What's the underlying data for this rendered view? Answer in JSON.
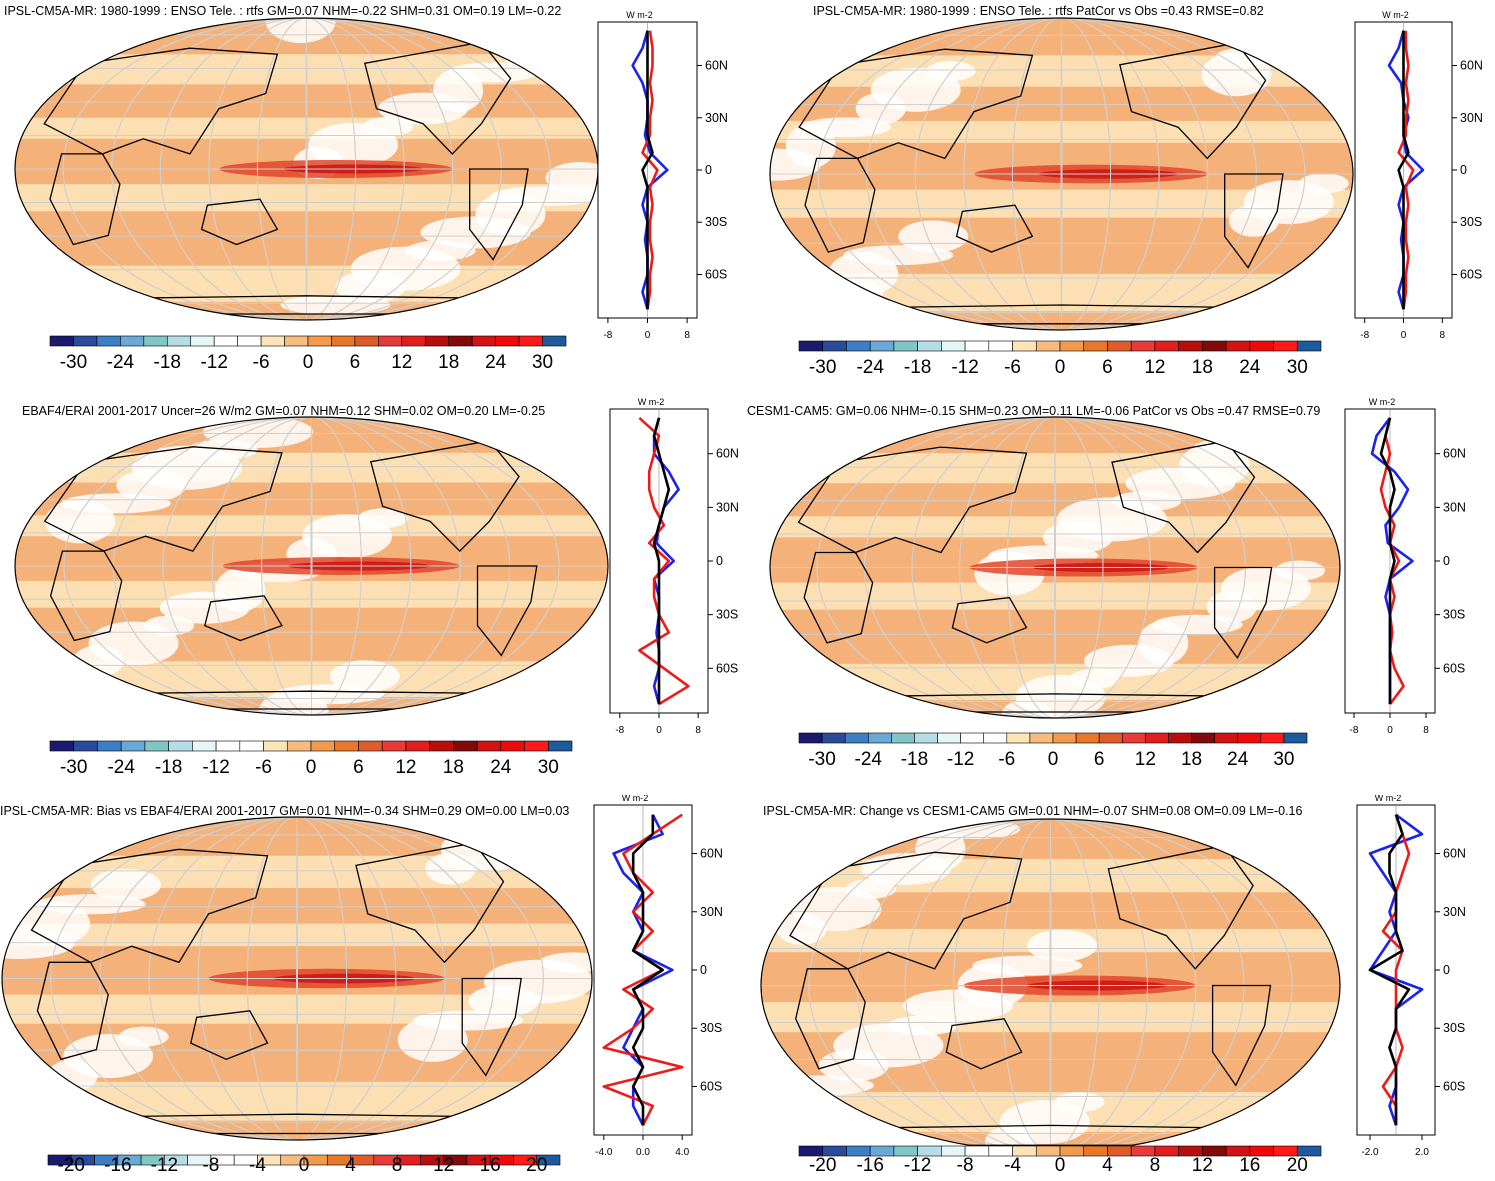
{
  "colors": {
    "palette30": [
      "#1b1b6e",
      "#2a4a9a",
      "#3d7fc4",
      "#6aa8d8",
      "#7fc6c4",
      "#b5dde6",
      "#e6f6f6",
      "#ffffff",
      "#ffffff",
      "#fde3b8",
      "#f7bb7e",
      "#f29a4e",
      "#e8772a",
      "#de5c2a",
      "#e83a3a",
      "#e21f1f",
      "#b80e0e",
      "#820a0a",
      "#d11313",
      "#ee0a0a",
      "#ff1a1a",
      "#1c5a9c"
    ],
    "palette20": [
      "#1b1b6e",
      "#2a4a9a",
      "#3d7fc4",
      "#6aa8d8",
      "#7fc6c4",
      "#b5dde6",
      "#e6f6f6",
      "#ffffff",
      "#ffffff",
      "#fde3b8",
      "#f7bb7e",
      "#f29a4e",
      "#e8772a",
      "#de5c2a",
      "#e83a3a",
      "#e21f1f",
      "#b80e0e",
      "#820a0a",
      "#d11313",
      "#ee0a0a",
      "#ff1a1a",
      "#1c5a9c"
    ],
    "series_blue": "#1a22ee",
    "series_red": "#ee1a1a",
    "series_black": "#000000",
    "map_fill": "#f4b27a",
    "map_light": "#fde3b8",
    "map_strong": "#e0452a"
  },
  "chart_data": [
    {
      "type": "heatmap",
      "title": "IPSL-CM5A-MR: 1980-1999 : ENSO Tele. : rtfs GM=0.07 NHM=-0.22 SHM=0.31 OM=0.19 LM=-0.22",
      "colorbar_ticks": [
        "-30",
        "-24",
        "-18",
        "-12",
        "-6",
        "0",
        "6",
        "12",
        "18",
        "24",
        "30"
      ],
      "profile": {
        "units": "W m-2",
        "xticks": [
          "-8",
          "0",
          "8"
        ],
        "xlim": [
          -10,
          10
        ],
        "lat_ticks": [
          "60N",
          "30N",
          "0",
          "30S",
          "60S"
        ],
        "lat": [
          80,
          70,
          60,
          50,
          40,
          30,
          20,
          10,
          0,
          -10,
          -20,
          -30,
          -40,
          -50,
          -60,
          -70,
          -80
        ],
        "series": [
          {
            "color": "blue",
            "values": [
              0,
              -1,
              -3,
              -1,
              0,
              0,
              -0.5,
              0.5,
              4,
              0,
              -1,
              0,
              -0.5,
              0,
              0,
              -1,
              0
            ]
          },
          {
            "color": "red",
            "values": [
              0.5,
              1,
              1,
              0.5,
              1,
              0.5,
              0.5,
              -1,
              2,
              0.5,
              1,
              0.5,
              0.5,
              1,
              0.5,
              0.5,
              0
            ]
          },
          {
            "color": "black",
            "values": [
              0,
              0,
              0,
              0,
              0,
              0,
              0,
              1,
              -1,
              0,
              0,
              0,
              0,
              0,
              0,
              0,
              0
            ]
          }
        ]
      }
    },
    {
      "type": "heatmap",
      "title": "IPSL-CM5A-MR: 1980-1999 : ENSO Tele. : rtfs PatCor vs Obs =0.43 RMSE=0.82",
      "colorbar_ticks": [
        "-30",
        "-24",
        "-18",
        "-12",
        "-6",
        "0",
        "6",
        "12",
        "18",
        "24",
        "30"
      ],
      "profile": {
        "units": "W m-2",
        "xticks": [
          "-8",
          "0",
          "8"
        ],
        "xlim": [
          -10,
          10
        ],
        "lat_ticks": [
          "60N",
          "30N",
          "0",
          "30S",
          "60S"
        ],
        "lat": [
          80,
          70,
          60,
          50,
          40,
          30,
          20,
          10,
          0,
          -10,
          -20,
          -30,
          -40,
          -50,
          -60,
          -70,
          -80
        ],
        "series": [
          {
            "color": "blue",
            "values": [
              0,
              -1,
              -3,
              -0.5,
              0,
              1,
              0,
              0.5,
              4,
              0,
              -1,
              0,
              -0.5,
              0,
              0,
              -1,
              0
            ]
          },
          {
            "color": "red",
            "values": [
              0.5,
              0.5,
              1,
              0.5,
              1,
              0.5,
              0.5,
              -1,
              2,
              0.5,
              1,
              0.5,
              0.5,
              1,
              0.5,
              0.5,
              0
            ]
          },
          {
            "color": "black",
            "values": [
              0,
              0,
              0,
              0,
              0,
              0,
              0,
              1,
              -1,
              0,
              0,
              0,
              0,
              0,
              0,
              0,
              0
            ]
          }
        ]
      }
    },
    {
      "type": "heatmap",
      "title": "EBAF4/ERAI 2001-2017 Uncer=26 W/m2 GM=0.07 NHM=0.12 SHM=0.02 OM=0.20 LM=-0.25",
      "colorbar_ticks": [
        "-30",
        "-24",
        "-18",
        "-12",
        "-6",
        "0",
        "6",
        "12",
        "18",
        "24",
        "30"
      ],
      "profile": {
        "units": "W m-2",
        "xticks": [
          "-8",
          "0",
          "8"
        ],
        "xlim": [
          -10,
          10
        ],
        "lat_ticks": [
          "60N",
          "30N",
          "0",
          "30S",
          "60S"
        ],
        "lat": [
          80,
          70,
          60,
          50,
          40,
          30,
          20,
          10,
          0,
          -10,
          -20,
          -30,
          -40,
          -50,
          -60,
          -70,
          -80
        ],
        "series": [
          {
            "color": "blue",
            "values": [
              0,
              -1,
              -1,
              2,
              4,
              1,
              0,
              -0.5,
              3,
              -1,
              0,
              0,
              -0.5,
              0,
              0,
              -1,
              0
            ]
          },
          {
            "color": "red",
            "values": [
              -4,
              0,
              -1,
              -2,
              -2,
              -1,
              1,
              -2,
              2,
              -1,
              -1,
              0,
              2,
              -4,
              1,
              6,
              0
            ]
          },
          {
            "color": "black",
            "values": [
              0,
              -1,
              0,
              1,
              2,
              1,
              0,
              -1,
              0,
              0,
              0,
              0,
              0,
              0,
              0,
              0,
              0
            ]
          }
        ]
      }
    },
    {
      "type": "heatmap",
      "title": "CESM1-CAM5: GM=0.06 NHM=-0.15 SHM=0.23 OM=0.11 LM=-0.06 PatCor vs Obs =0.47 RMSE=0.79",
      "colorbar_ticks": [
        "-30",
        "-24",
        "-18",
        "-12",
        "-6",
        "0",
        "6",
        "12",
        "18",
        "24",
        "30"
      ],
      "profile": {
        "units": "W m-2",
        "xticks": [
          "-8",
          "0",
          "8"
        ],
        "xlim": [
          -10,
          10
        ],
        "lat_ticks": [
          "60N",
          "30N",
          "0",
          "30S",
          "60S"
        ],
        "lat": [
          80,
          70,
          60,
          50,
          40,
          30,
          20,
          10,
          0,
          -10,
          -20,
          -30,
          -40,
          -50,
          -60,
          -70,
          -80
        ],
        "series": [
          {
            "color": "blue",
            "values": [
              0,
              -3,
              -4,
              1,
              4,
              2,
              -1,
              -0.5,
              5,
              0,
              -1,
              0,
              0,
              0,
              0,
              0,
              0
            ]
          },
          {
            "color": "red",
            "values": [
              0,
              -1,
              0,
              -1,
              -2,
              -1,
              1,
              0,
              2,
              0,
              1,
              0,
              0.5,
              0,
              1,
              3,
              0
            ]
          },
          {
            "color": "black",
            "values": [
              0,
              -1,
              -2,
              0,
              1,
              0,
              0,
              0,
              1,
              0,
              0,
              0,
              0,
              0,
              0,
              0,
              0
            ]
          }
        ]
      }
    },
    {
      "type": "heatmap",
      "title": "IPSL-CM5A-MR: Bias vs EBAF4/ERAI 2001-2017 GM=0.01 NHM=-0.34 SHM=0.29 OM=0.00 LM=0.03",
      "colorbar_ticks": [
        "-20",
        "-16",
        "-12",
        "-8",
        "-4",
        "0",
        "4",
        "8",
        "12",
        "16",
        "20"
      ],
      "profile": {
        "units": "W m-2",
        "xticks": [
          "-4.0",
          "0.0",
          "4.0"
        ],
        "xlim": [
          -5,
          5
        ],
        "lat_ticks": [
          "60N",
          "30N",
          "0",
          "30S",
          "60S"
        ],
        "lat": [
          80,
          70,
          60,
          50,
          40,
          30,
          20,
          10,
          0,
          -10,
          -20,
          -30,
          -40,
          -50,
          -60,
          -70,
          -80
        ],
        "series": [
          {
            "color": "blue",
            "values": [
              1,
              2,
              -3,
              -2,
              0,
              -1,
              0,
              -1,
              3,
              -1,
              0,
              -1,
              -2,
              0,
              -1,
              -1,
              0
            ]
          },
          {
            "color": "red",
            "values": [
              4,
              1,
              -2,
              -1,
              1,
              -1,
              1,
              -1,
              2,
              -2,
              1,
              -1,
              -4,
              4,
              -4,
              1,
              0
            ]
          },
          {
            "color": "black",
            "values": [
              1,
              1,
              -1,
              -1,
              0,
              0,
              0,
              -1,
              2,
              -1,
              0,
              0,
              -1,
              0,
              -1,
              0,
              0
            ]
          }
        ]
      }
    },
    {
      "type": "heatmap",
      "title": "IPSL-CM5A-MR: Change vs CESM1-CAM5 GM=0.01 NHM=-0.07 SHM=0.08 OM=0.09 LM=-0.16",
      "colorbar_ticks": [
        "-20",
        "-16",
        "-12",
        "-8",
        "-4",
        "0",
        "4",
        "8",
        "12",
        "16",
        "20"
      ],
      "profile": {
        "units": "W m-2",
        "xticks": [
          "-2.0",
          "2.0"
        ],
        "xlim": [
          -3,
          3
        ],
        "lat_ticks": [
          "60N",
          "30N",
          "0",
          "30S",
          "60S"
        ],
        "lat": [
          80,
          70,
          60,
          50,
          40,
          30,
          20,
          10,
          0,
          -10,
          -20,
          -30,
          -40,
          -50,
          -60,
          -70,
          -80
        ],
        "series": [
          {
            "color": "blue",
            "values": [
              0,
              2,
              -2,
              -1,
              0,
              -0.5,
              0,
              -1,
              -2,
              2,
              0,
              0,
              -0.5,
              0,
              0,
              -0.5,
              0
            ]
          },
          {
            "color": "red",
            "values": [
              0,
              0.5,
              1,
              0.5,
              0,
              0,
              -1,
              0.5,
              0,
              0,
              0,
              0,
              0.5,
              0,
              -1,
              0,
              0
            ]
          },
          {
            "color": "black",
            "values": [
              0,
              0.5,
              -0.5,
              -0.5,
              0,
              0,
              0,
              0.5,
              -2,
              1,
              0,
              0,
              -0.5,
              0,
              0,
              0,
              0
            ]
          }
        ]
      }
    }
  ]
}
